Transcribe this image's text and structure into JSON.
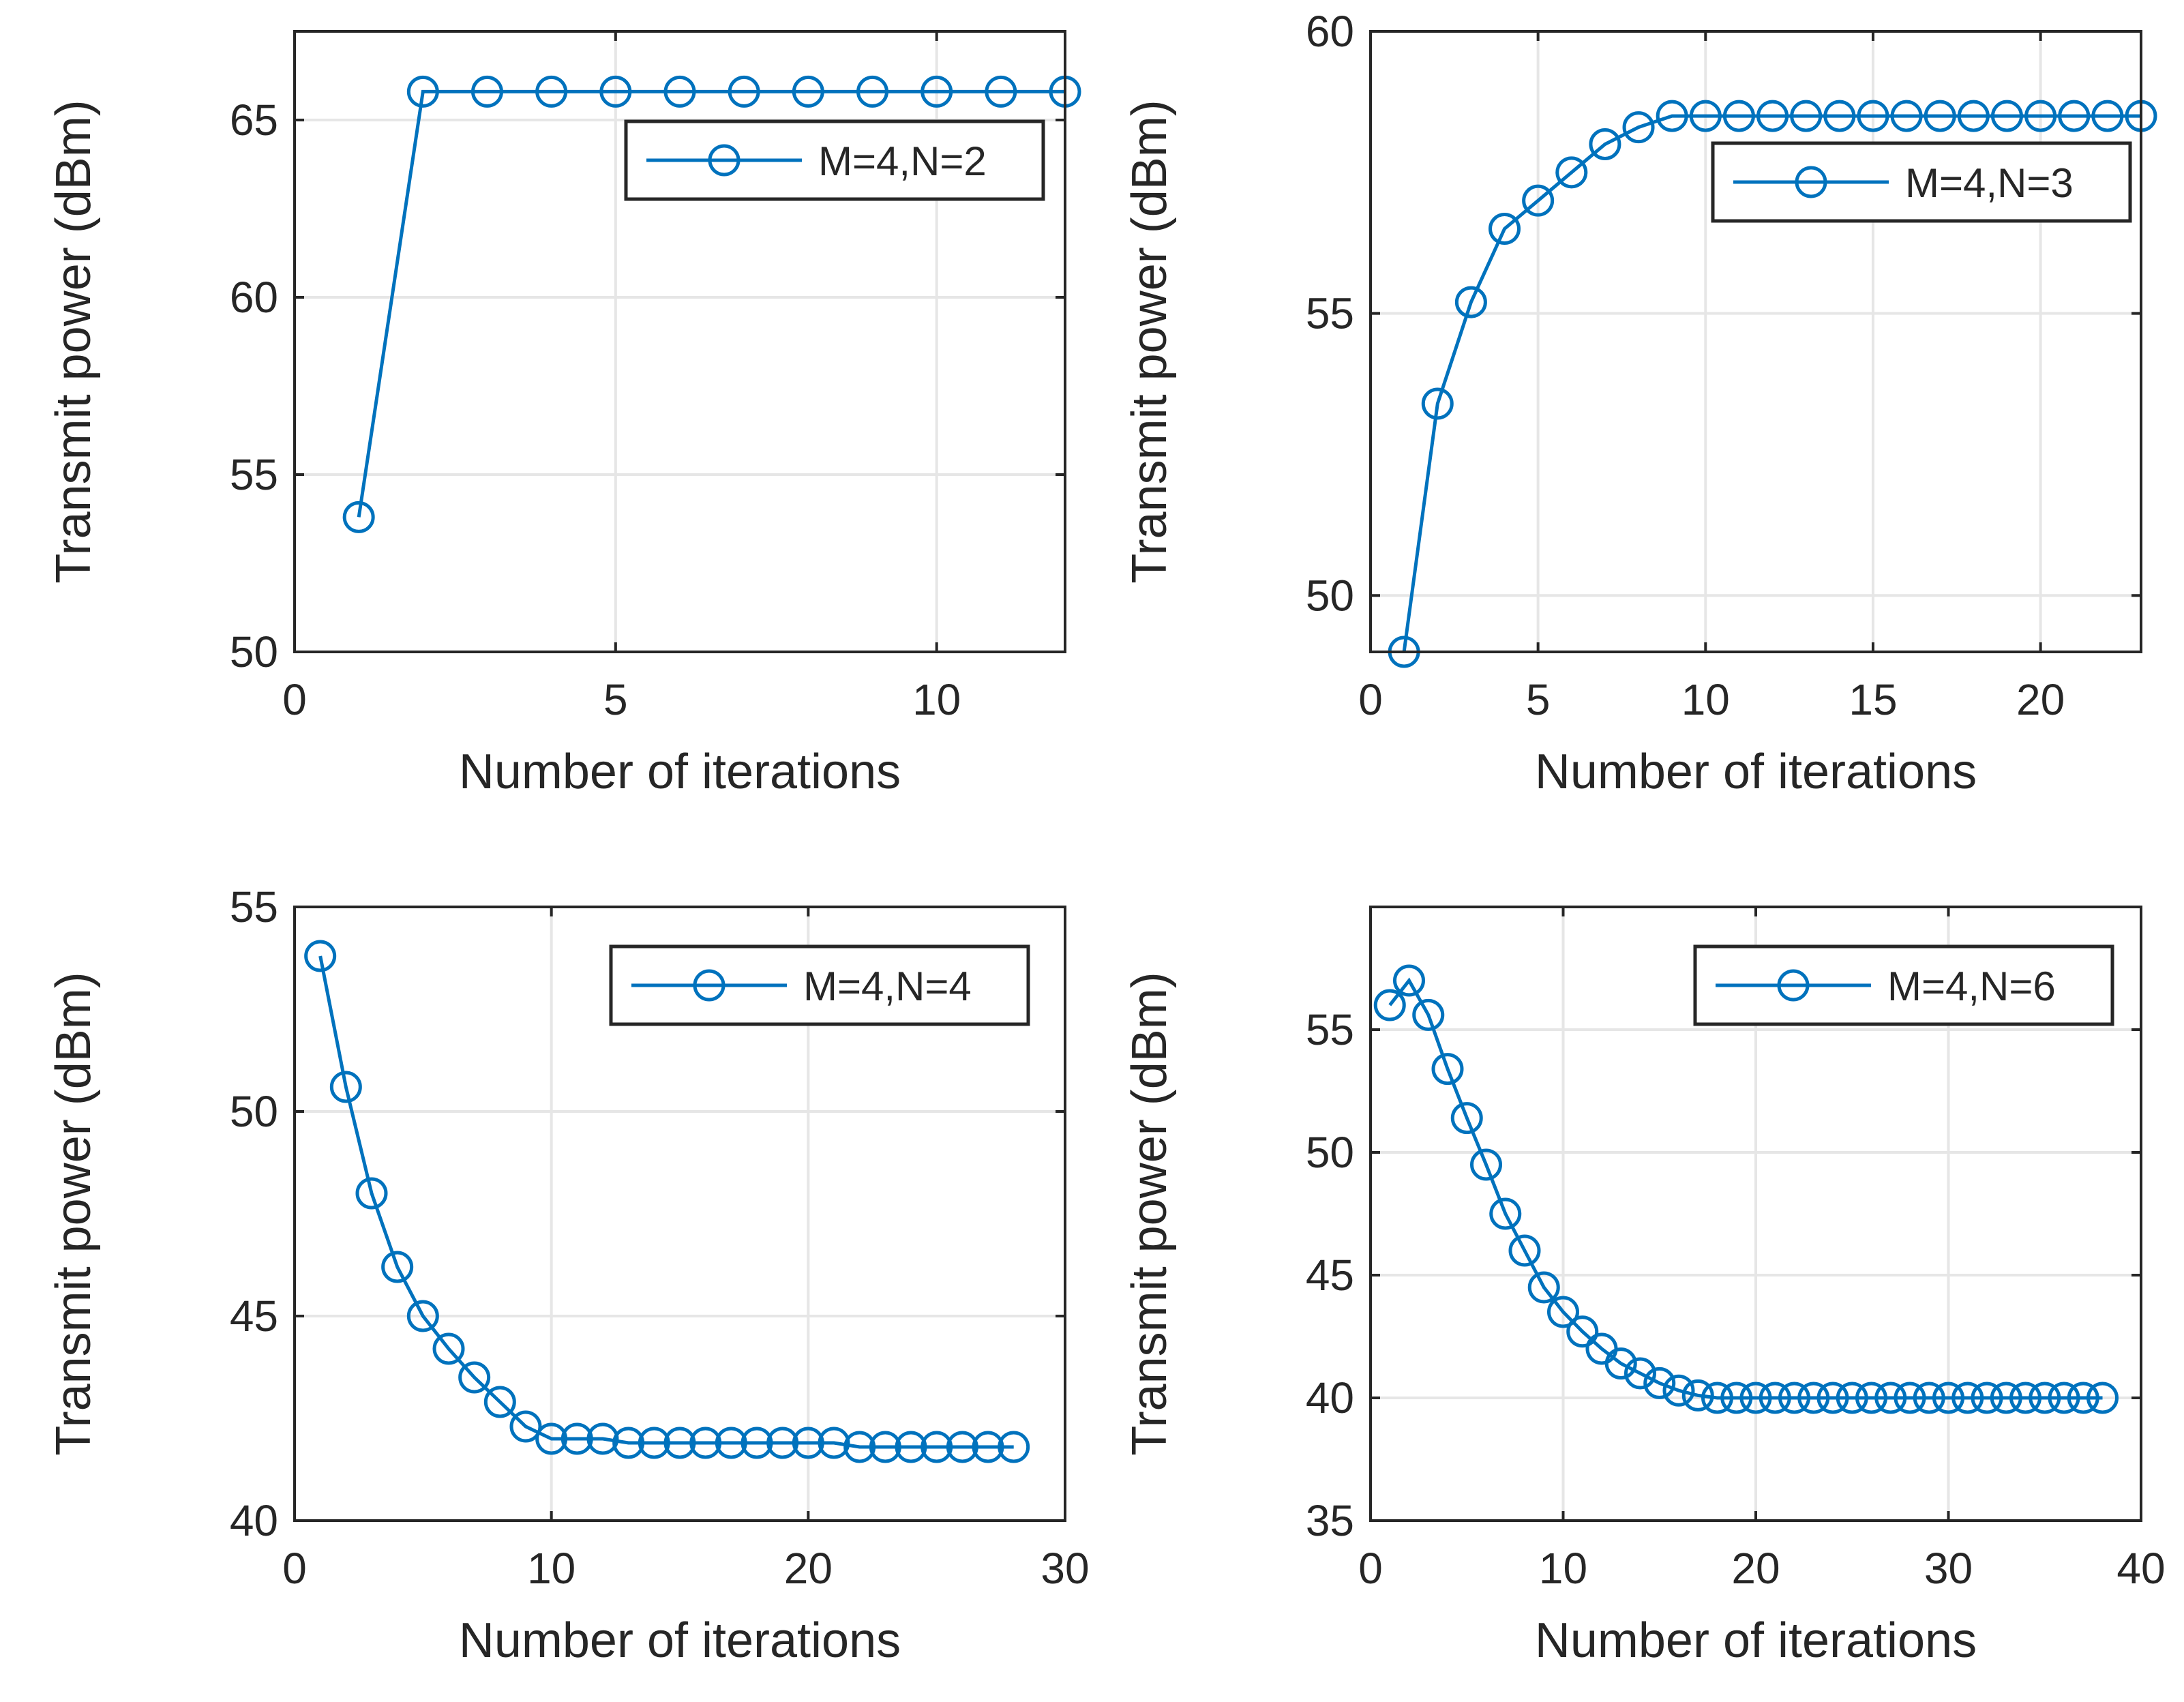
{
  "colors": {
    "series": "#0072BD",
    "axes": "#262626",
    "grid": "#e6e6e6",
    "background": "#ffffff"
  },
  "chart_data": [
    {
      "type": "line",
      "xlabel": "Number of iterations",
      "ylabel": "Transmit power (dBm)",
      "xlim": [
        0,
        12
      ],
      "ylim": [
        50,
        67.5
      ],
      "xticks": [
        0,
        5,
        10
      ],
      "yticks": [
        50,
        55,
        60,
        65
      ],
      "grid": true,
      "legend_position": "top-right",
      "series": [
        {
          "name": "M=4,N=2",
          "marker": "circle",
          "x": [
            1,
            2,
            3,
            4,
            5,
            6,
            7,
            8,
            9,
            10,
            11,
            12
          ],
          "y": [
            53.8,
            65.8,
            65.8,
            65.8,
            65.8,
            65.8,
            65.8,
            65.8,
            65.8,
            65.8,
            65.8,
            65.8
          ]
        }
      ]
    },
    {
      "type": "line",
      "xlabel": "Number of iterations",
      "ylabel": "Transmit power (dBm)",
      "xlim": [
        0,
        23
      ],
      "ylim": [
        49,
        60
      ],
      "xticks": [
        0,
        5,
        10,
        15,
        20
      ],
      "yticks": [
        50,
        55,
        60
      ],
      "grid": true,
      "legend_position": "top-right",
      "series": [
        {
          "name": "M=4,N=3",
          "marker": "circle",
          "x": [
            1,
            2,
            3,
            4,
            5,
            6,
            7,
            8,
            9,
            10,
            11,
            12,
            13,
            14,
            15,
            16,
            17,
            18,
            19,
            20,
            21,
            22,
            23
          ],
          "y": [
            49.0,
            53.4,
            55.2,
            56.5,
            57.0,
            57.5,
            58.0,
            58.3,
            58.5,
            58.5,
            58.5,
            58.5,
            58.5,
            58.5,
            58.5,
            58.5,
            58.5,
            58.5,
            58.5,
            58.5,
            58.5,
            58.5,
            58.5
          ]
        }
      ]
    },
    {
      "type": "line",
      "xlabel": "Number of iterations",
      "ylabel": "Transmit power (dBm)",
      "xlim": [
        0,
        30
      ],
      "ylim": [
        40,
        55
      ],
      "xticks": [
        0,
        10,
        20,
        30
      ],
      "yticks": [
        40,
        45,
        50,
        55
      ],
      "grid": true,
      "legend_position": "top-right",
      "series": [
        {
          "name": "M=4,N=4",
          "marker": "circle",
          "x": [
            1,
            2,
            3,
            4,
            5,
            6,
            7,
            8,
            9,
            10,
            11,
            12,
            13,
            14,
            15,
            16,
            17,
            18,
            19,
            20,
            21,
            22,
            23,
            24,
            25,
            26,
            27,
            28
          ],
          "y": [
            53.8,
            50.6,
            48.0,
            46.2,
            45.0,
            44.2,
            43.5,
            42.9,
            42.3,
            42.0,
            42.0,
            42.0,
            41.9,
            41.9,
            41.9,
            41.9,
            41.9,
            41.9,
            41.9,
            41.9,
            41.9,
            41.8,
            41.8,
            41.8,
            41.8,
            41.8,
            41.8,
            41.8
          ]
        }
      ]
    },
    {
      "type": "line",
      "xlabel": "Number of iterations",
      "ylabel": "Transmit power (dBm)",
      "xlim": [
        0,
        40
      ],
      "ylim": [
        35,
        60
      ],
      "xticks": [
        0,
        10,
        20,
        30,
        40
      ],
      "yticks": [
        35,
        40,
        45,
        50,
        55
      ],
      "grid": true,
      "legend_position": "top-right",
      "series": [
        {
          "name": "M=4,N=6",
          "marker": "circle",
          "x": [
            1,
            2,
            3,
            4,
            5,
            6,
            7,
            8,
            9,
            10,
            11,
            12,
            13,
            14,
            15,
            16,
            17,
            18,
            19,
            20,
            21,
            22,
            23,
            24,
            25,
            26,
            27,
            28,
            29,
            30,
            31,
            32,
            33,
            34,
            35,
            36,
            37,
            38
          ],
          "y": [
            56.0,
            57.0,
            55.6,
            53.4,
            51.4,
            49.5,
            47.5,
            46.0,
            44.5,
            43.5,
            42.7,
            42.0,
            41.4,
            41.0,
            40.6,
            40.3,
            40.1,
            40.0,
            40.0,
            40.0,
            40.0,
            40.0,
            40.0,
            40.0,
            40.0,
            40.0,
            40.0,
            40.0,
            40.0,
            40.0,
            40.0,
            40.0,
            40.0,
            40.0,
            40.0,
            40.0,
            40.0,
            40.0
          ]
        }
      ]
    }
  ]
}
